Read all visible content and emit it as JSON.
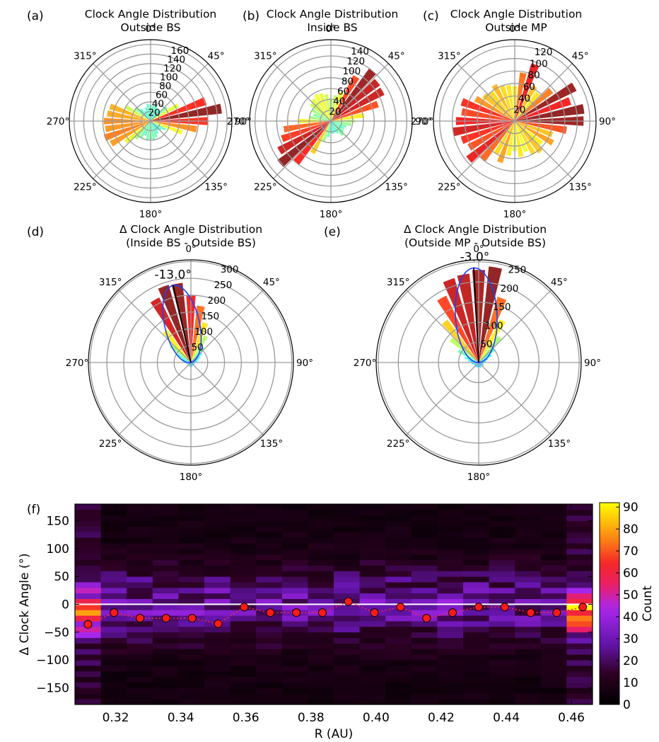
{
  "chart_data": [
    {
      "panel": "(a)",
      "type": "polar-bar",
      "title": [
        "Clock Angle Distribution",
        "Outside BS"
      ],
      "theta_labels": [
        "0°",
        "45°",
        "90°",
        "135°",
        "180°",
        "225°",
        "270°",
        "315°"
      ],
      "r_ticks": [
        20,
        40,
        60,
        80,
        100,
        120,
        140,
        160
      ],
      "rmax": 170,
      "bins": [
        [
          0,
          34
        ],
        [
          10,
          32
        ],
        [
          20,
          36
        ],
        [
          30,
          28
        ],
        [
          40,
          26
        ],
        [
          50,
          44
        ],
        [
          60,
          66
        ],
        [
          70,
          122
        ],
        [
          80,
          150
        ],
        [
          90,
          120
        ],
        [
          100,
          98
        ],
        [
          110,
          70
        ],
        [
          120,
          36
        ],
        [
          130,
          28
        ],
        [
          140,
          24
        ],
        [
          150,
          30
        ],
        [
          160,
          36
        ],
        [
          170,
          40
        ],
        [
          180,
          38
        ],
        [
          190,
          40
        ],
        [
          200,
          32
        ],
        [
          210,
          40
        ],
        [
          220,
          48
        ],
        [
          230,
          68
        ],
        [
          240,
          95
        ],
        [
          250,
          102
        ],
        [
          260,
          96
        ],
        [
          270,
          98
        ],
        [
          280,
          92
        ],
        [
          290,
          90
        ],
        [
          300,
          60
        ],
        [
          310,
          42
        ],
        [
          320,
          32
        ],
        [
          330,
          24
        ],
        [
          340,
          30
        ],
        [
          350,
          36
        ]
      ]
    },
    {
      "panel": "(b)",
      "type": "polar-bar",
      "title": [
        "Clock Angle Distribution",
        "Inside BS"
      ],
      "theta_labels": [
        "0°",
        "45°",
        "90°",
        "135°",
        "180°",
        "225°",
        "270°",
        "315°"
      ],
      "r_ticks": [
        20,
        40,
        60,
        80,
        100,
        120,
        140
      ],
      "rmax": 150,
      "bins": [
        [
          0,
          42
        ],
        [
          10,
          48
        ],
        [
          20,
          56
        ],
        [
          30,
          94
        ],
        [
          40,
          120
        ],
        [
          50,
          112
        ],
        [
          60,
          110
        ],
        [
          70,
          92
        ],
        [
          80,
          62
        ],
        [
          90,
          44
        ],
        [
          100,
          38
        ],
        [
          110,
          30
        ],
        [
          120,
          28
        ],
        [
          130,
          30
        ],
        [
          140,
          34
        ],
        [
          150,
          26
        ],
        [
          160,
          22
        ],
        [
          170,
          24
        ],
        [
          180,
          22
        ],
        [
          190,
          30
        ],
        [
          200,
          40
        ],
        [
          210,
          68
        ],
        [
          220,
          100
        ],
        [
          230,
          122
        ],
        [
          240,
          110
        ],
        [
          250,
          96
        ],
        [
          260,
          88
        ],
        [
          270,
          60
        ],
        [
          280,
          40
        ],
        [
          290,
          34
        ],
        [
          300,
          40
        ],
        [
          310,
          48
        ],
        [
          320,
          52
        ],
        [
          330,
          56
        ],
        [
          340,
          54
        ],
        [
          350,
          50
        ]
      ]
    },
    {
      "panel": "(c)",
      "type": "polar-bar",
      "title": [
        "Clock Angle Distribution",
        "Outside MP"
      ],
      "theta_labels": [
        "0°",
        "45°",
        "90°",
        "135°",
        "180°",
        "225°",
        "270°",
        "315°"
      ],
      "r_ticks": [
        20,
        40,
        60,
        80,
        100,
        120
      ],
      "rmax": 130,
      "bins": [
        [
          0,
          56
        ],
        [
          10,
          78
        ],
        [
          20,
          96
        ],
        [
          30,
          64
        ],
        [
          40,
          58
        ],
        [
          50,
          76
        ],
        [
          60,
          110
        ],
        [
          70,
          94
        ],
        [
          80,
          112
        ],
        [
          90,
          110
        ],
        [
          100,
          84
        ],
        [
          110,
          64
        ],
        [
          120,
          70
        ],
        [
          130,
          56
        ],
        [
          140,
          64
        ],
        [
          150,
          60
        ],
        [
          160,
          52
        ],
        [
          170,
          58
        ],
        [
          180,
          48
        ],
        [
          190,
          56
        ],
        [
          200,
          70
        ],
        [
          210,
          60
        ],
        [
          220,
          80
        ],
        [
          230,
          96
        ],
        [
          240,
          84
        ],
        [
          250,
          90
        ],
        [
          260,
          100
        ],
        [
          270,
          94
        ],
        [
          280,
          86
        ],
        [
          290,
          90
        ],
        [
          300,
          72
        ],
        [
          310,
          64
        ],
        [
          320,
          60
        ],
        [
          330,
          66
        ],
        [
          340,
          60
        ],
        [
          350,
          58
        ]
      ]
    },
    {
      "panel": "(d)",
      "type": "polar-bar",
      "title": [
        "Δ Clock Angle Distribution",
        "(Inside BS - Outside BS)"
      ],
      "theta_labels": [
        "0°",
        "45°",
        "90°",
        "135°",
        "180°",
        "225°",
        "270°",
        "315°"
      ],
      "r_ticks": [
        50,
        100,
        150,
        200,
        250,
        300
      ],
      "rmax": 305,
      "mean_label": "-13.0°",
      "mean_angle": -13.0,
      "bins": [
        [
          0,
          200
        ],
        [
          10,
          170
        ],
        [
          20,
          125
        ],
        [
          30,
          90
        ],
        [
          40,
          58
        ],
        [
          50,
          42
        ],
        [
          60,
          32
        ],
        [
          70,
          24
        ],
        [
          80,
          18
        ],
        [
          90,
          12
        ],
        [
          100,
          12
        ],
        [
          110,
          10
        ],
        [
          120,
          12
        ],
        [
          130,
          10
        ],
        [
          140,
          8
        ],
        [
          150,
          10
        ],
        [
          160,
          12
        ],
        [
          170,
          14
        ],
        [
          180,
          10
        ],
        [
          190,
          12
        ],
        [
          200,
          14
        ],
        [
          210,
          10
        ],
        [
          220,
          12
        ],
        [
          230,
          12
        ],
        [
          240,
          10
        ],
        [
          250,
          12
        ],
        [
          260,
          14
        ],
        [
          270,
          18
        ],
        [
          280,
          22
        ],
        [
          290,
          30
        ],
        [
          300,
          48
        ],
        [
          310,
          78
        ],
        [
          320,
          120
        ],
        [
          330,
          215
        ],
        [
          340,
          240
        ],
        [
          350,
          238
        ]
      ]
    },
    {
      "panel": "(e)",
      "type": "polar-bar",
      "title": [
        "Δ Clock Angle Distribution",
        "(Outside MP - Outside BS)"
      ],
      "theta_labels": [
        "0°",
        "45°",
        "90°",
        "135°",
        "180°",
        "225°",
        "270°",
        "315°"
      ],
      "r_ticks": [
        50,
        100,
        150,
        200,
        250
      ],
      "rmax": 255,
      "mean_label": "-3.0°",
      "mean_angle": -3.0,
      "bins": [
        [
          0,
          230
        ],
        [
          10,
          240
        ],
        [
          20,
          170
        ],
        [
          30,
          120
        ],
        [
          40,
          82
        ],
        [
          50,
          52
        ],
        [
          60,
          36
        ],
        [
          70,
          24
        ],
        [
          80,
          18
        ],
        [
          90,
          14
        ],
        [
          100,
          12
        ],
        [
          110,
          12
        ],
        [
          120,
          14
        ],
        [
          130,
          12
        ],
        [
          140,
          10
        ],
        [
          150,
          12
        ],
        [
          160,
          14
        ],
        [
          170,
          12
        ],
        [
          180,
          14
        ],
        [
          190,
          12
        ],
        [
          200,
          12
        ],
        [
          210,
          14
        ],
        [
          220,
          12
        ],
        [
          230,
          14
        ],
        [
          240,
          12
        ],
        [
          250,
          14
        ],
        [
          260,
          18
        ],
        [
          270,
          20
        ],
        [
          280,
          26
        ],
        [
          290,
          36
        ],
        [
          300,
          58
        ],
        [
          310,
          90
        ],
        [
          320,
          132
        ],
        [
          330,
          185
        ],
        [
          340,
          218
        ],
        [
          350,
          222
        ]
      ]
    },
    {
      "panel": "(f)",
      "type": "heatmap",
      "xlabel": "R (AU)",
      "ylabel": "Δ Clock Angle (°)",
      "xlim": [
        0.3075,
        0.4665
      ],
      "ylim": [
        -180,
        180
      ],
      "x_ticks": [
        0.32,
        0.34,
        0.36,
        0.38,
        0.4,
        0.42,
        0.44,
        0.46
      ],
      "y_ticks": [
        -150,
        -100,
        -50,
        0,
        50,
        100,
        150
      ],
      "colorbar": {
        "label": "Count",
        "min": 0,
        "max": 92,
        "ticks": [
          0,
          10,
          20,
          30,
          40,
          50,
          60,
          70,
          80,
          90
        ]
      },
      "x_bins": 20,
      "y_bins": 36,
      "median_points": {
        "x": [
          0.3115,
          0.3195,
          0.3275,
          0.3355,
          0.3435,
          0.3515,
          0.3595,
          0.3675,
          0.3755,
          0.3835,
          0.3915,
          0.3995,
          0.4075,
          0.4155,
          0.4235,
          0.4315,
          0.4395,
          0.4475,
          0.4555,
          0.4635
        ],
        "y": [
          -36,
          -15,
          -25,
          -25,
          -25,
          -35,
          -5,
          -15,
          -15,
          -15,
          5,
          -15,
          -5,
          -25,
          -15,
          -5,
          -5,
          -15,
          -15,
          -5
        ]
      },
      "zero_line": 0
    }
  ]
}
